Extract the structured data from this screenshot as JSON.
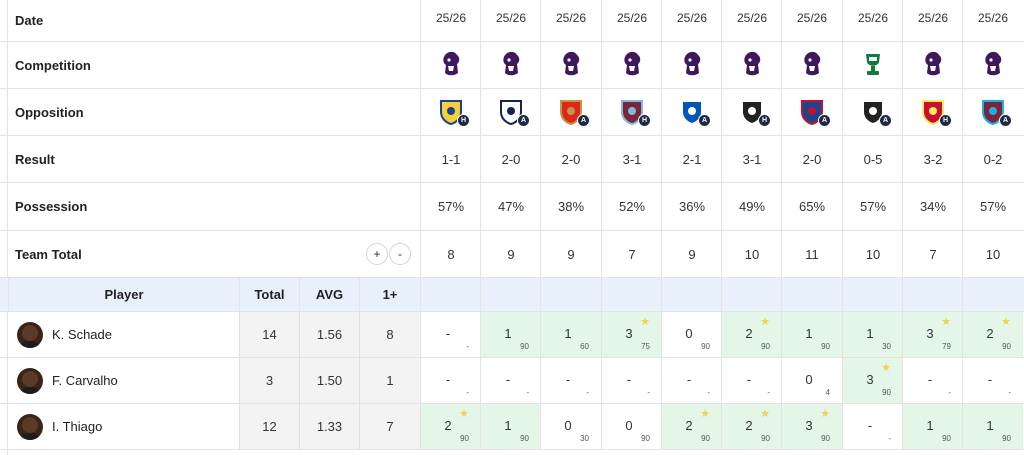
{
  "labels": {
    "date": "Date",
    "competition": "Competition",
    "opposition": "Opposition",
    "result": "Result",
    "possession": "Possession",
    "team_total": "Team Total",
    "plus": "+",
    "minus": "-"
  },
  "player_header": {
    "player": "Player",
    "total": "Total",
    "avg": "AVG",
    "one_plus": "1+"
  },
  "matches": [
    {
      "date": "25/26",
      "competition": "premier-league",
      "opponent": "Leeds",
      "venue": "H",
      "result": "1-1",
      "outcome": "draw",
      "possession": "57%",
      "team_total": "8"
    },
    {
      "date": "25/26",
      "competition": "premier-league",
      "opponent": "Tottenham",
      "venue": "A",
      "result": "2-0",
      "outcome": "loss",
      "possession": "47%",
      "team_total": "9"
    },
    {
      "date": "25/26",
      "competition": "premier-league",
      "opponent": "Arsenal",
      "venue": "A",
      "result": "2-0",
      "outcome": "loss",
      "possession": "38%",
      "team_total": "9"
    },
    {
      "date": "25/26",
      "competition": "premier-league",
      "opponent": "Burnley",
      "venue": "H",
      "result": "3-1",
      "outcome": "win",
      "possession": "52%",
      "team_total": "7"
    },
    {
      "date": "25/26",
      "competition": "premier-league",
      "opponent": "Brighton",
      "venue": "A",
      "result": "2-1",
      "outcome": "loss",
      "possession": "36%",
      "team_total": "9"
    },
    {
      "date": "25/26",
      "competition": "premier-league",
      "opponent": "Newcastle",
      "venue": "H",
      "result": "3-1",
      "outcome": "win",
      "possession": "49%",
      "team_total": "10"
    },
    {
      "date": "25/26",
      "competition": "premier-league",
      "opponent": "Crystal Palace",
      "venue": "A",
      "result": "2-0",
      "outcome": "loss",
      "possession": "65%",
      "team_total": "11"
    },
    {
      "date": "25/26",
      "competition": "carabao-cup",
      "opponent": "Grimsby",
      "venue": "A",
      "result": "0-5",
      "outcome": "win",
      "possession": "57%",
      "team_total": "10"
    },
    {
      "date": "25/26",
      "competition": "premier-league",
      "opponent": "Liverpool",
      "venue": "H",
      "result": "3-2",
      "outcome": "win",
      "possession": "34%",
      "team_total": "7"
    },
    {
      "date": "25/26",
      "competition": "premier-league",
      "opponent": "West Ham",
      "venue": "A",
      "result": "0-2",
      "outcome": "win",
      "possession": "57%",
      "team_total": "10"
    }
  ],
  "players": [
    {
      "name": "K. Schade",
      "total": "14",
      "avg": "1.56",
      "one_plus": "8",
      "cells": [
        {
          "v": "-",
          "m": "-",
          "g": false,
          "s": false
        },
        {
          "v": "1",
          "m": "90",
          "g": true,
          "s": false
        },
        {
          "v": "1",
          "m": "60",
          "g": true,
          "s": false
        },
        {
          "v": "3",
          "m": "75",
          "g": true,
          "s": true
        },
        {
          "v": "0",
          "m": "90",
          "g": false,
          "s": false
        },
        {
          "v": "2",
          "m": "90",
          "g": true,
          "s": true
        },
        {
          "v": "1",
          "m": "90",
          "g": true,
          "s": false
        },
        {
          "v": "1",
          "m": "30",
          "g": true,
          "s": false
        },
        {
          "v": "3",
          "m": "79",
          "g": true,
          "s": true
        },
        {
          "v": "2",
          "m": "90",
          "g": true,
          "s": true
        }
      ]
    },
    {
      "name": "F. Carvalho",
      "total": "3",
      "avg": "1.50",
      "one_plus": "1",
      "cells": [
        {
          "v": "-",
          "m": "-",
          "g": false,
          "s": false
        },
        {
          "v": "-",
          "m": "-",
          "g": false,
          "s": false
        },
        {
          "v": "-",
          "m": "-",
          "g": false,
          "s": false
        },
        {
          "v": "-",
          "m": "-",
          "g": false,
          "s": false
        },
        {
          "v": "-",
          "m": "-",
          "g": false,
          "s": false
        },
        {
          "v": "-",
          "m": "-",
          "g": false,
          "s": false
        },
        {
          "v": "0",
          "m": "4",
          "g": false,
          "s": false
        },
        {
          "v": "3",
          "m": "90",
          "g": true,
          "s": true
        },
        {
          "v": "-",
          "m": "-",
          "g": false,
          "s": false
        },
        {
          "v": "-",
          "m": "-",
          "g": false,
          "s": false
        }
      ]
    },
    {
      "name": "I. Thiago",
      "total": "12",
      "avg": "1.33",
      "one_plus": "7",
      "cells": [
        {
          "v": "2",
          "m": "90",
          "g": true,
          "s": true
        },
        {
          "v": "1",
          "m": "90",
          "g": true,
          "s": false
        },
        {
          "v": "0",
          "m": "30",
          "g": false,
          "s": false
        },
        {
          "v": "0",
          "m": "90",
          "g": false,
          "s": false
        },
        {
          "v": "2",
          "m": "90",
          "g": true,
          "s": true
        },
        {
          "v": "2",
          "m": "90",
          "g": true,
          "s": true
        },
        {
          "v": "3",
          "m": "90",
          "g": true,
          "s": true
        },
        {
          "v": "-",
          "m": "-",
          "g": false,
          "s": false
        },
        {
          "v": "1",
          "m": "90",
          "g": true,
          "s": false
        },
        {
          "v": "1",
          "m": "90",
          "g": true,
          "s": false
        }
      ]
    }
  ],
  "colors": {
    "win": "#2db35a",
    "loss": "#e03a3a",
    "draw": "#333333",
    "highlight": "#e3f6e8",
    "star": "#f2d24b",
    "header_bg": "#e8f0fb"
  }
}
